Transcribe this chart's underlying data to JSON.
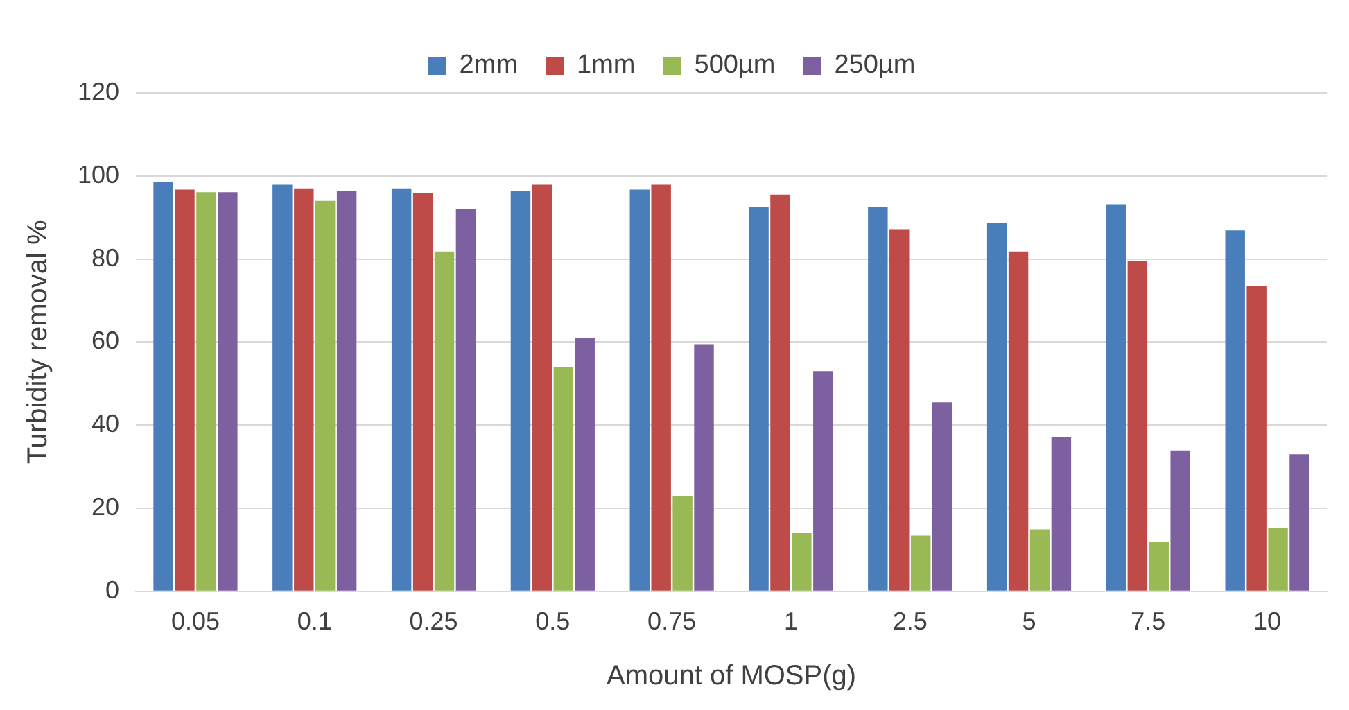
{
  "chart_data": {
    "type": "bar",
    "xlabel": "Amount of MOSP(g)",
    "ylabel": "Turbidity removal %",
    "categories": [
      "0.05",
      "0.1",
      "0.25",
      "0.5",
      "0.75",
      "1",
      "2.5",
      "5",
      "7.5",
      "10"
    ],
    "series": [
      {
        "name": "2mm",
        "color": "#4a7ebb",
        "values": [
          98.5,
          97.9,
          97,
          96.4,
          96.7,
          92.6,
          92.6,
          88.7,
          93.2,
          86.9
        ]
      },
      {
        "name": "1mm",
        "color": "#be4b48",
        "values": [
          96.7,
          97,
          95.8,
          97.9,
          97.9,
          95.5,
          87.2,
          81.8,
          79.5,
          73.5
        ]
      },
      {
        "name": "500µm",
        "color": "#98b954",
        "values": [
          96.1,
          94,
          81.8,
          53.9,
          22.9,
          14,
          13.4,
          14.9,
          11.9,
          15.2
        ]
      },
      {
        "name": "250µm",
        "color": "#7d60a0",
        "values": [
          96.1,
          96.4,
          92,
          61,
          59.5,
          53,
          45.5,
          37.2,
          33.9,
          33
        ]
      }
    ],
    "ylim": [
      0,
      120
    ],
    "yticks": [
      0,
      20,
      40,
      60,
      80,
      100,
      120
    ],
    "grid": "y",
    "legend": "top"
  }
}
